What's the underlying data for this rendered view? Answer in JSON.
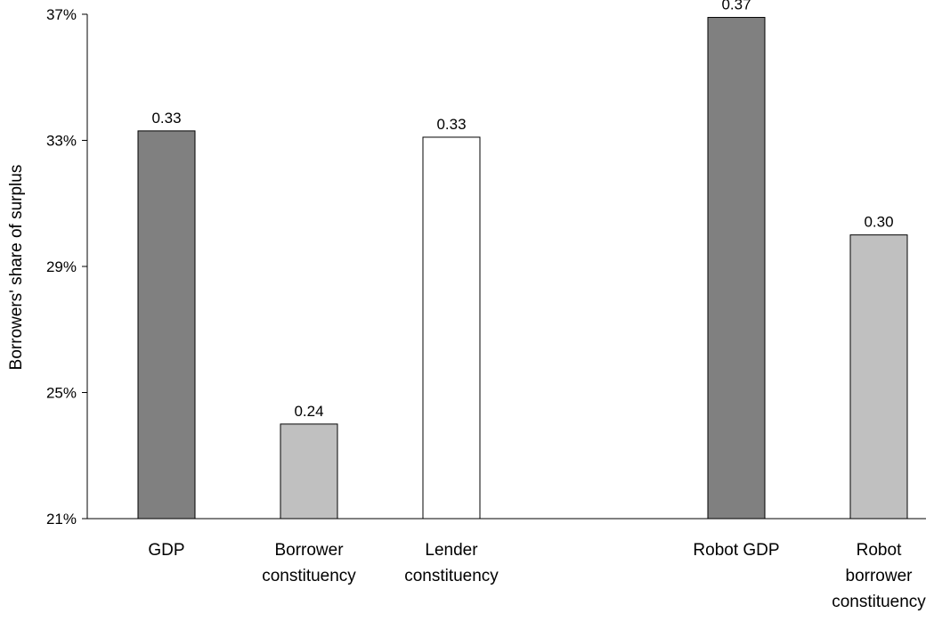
{
  "chart_data": {
    "type": "bar",
    "title": "",
    "ylabel": "Borrowers' share of surplus",
    "xlabel": "",
    "ylim": [
      0.21,
      0.37
    ],
    "yticks": [
      {
        "value": 0.21,
        "label": "21%"
      },
      {
        "value": 0.25,
        "label": "25%"
      },
      {
        "value": 0.29,
        "label": "29%"
      },
      {
        "value": 0.33,
        "label": "33%"
      },
      {
        "value": 0.37,
        "label": "37%"
      }
    ],
    "bars": [
      {
        "category_lines": [
          "GDP"
        ],
        "value": 0.333,
        "label": "0.33",
        "color": "#808080",
        "slot": 0
      },
      {
        "category_lines": [
          "Borrower",
          "constituency"
        ],
        "value": 0.24,
        "label": "0.24",
        "color": "#c0c0c0",
        "slot": 1
      },
      {
        "category_lines": [
          "Lender",
          "constituency"
        ],
        "value": 0.331,
        "label": "0.33",
        "color": "#ffffff",
        "slot": 2
      },
      {
        "category_lines": [
          "Robot GDP"
        ],
        "value": 0.369,
        "label": "0.37",
        "color": "#808080",
        "slot": 4
      },
      {
        "category_lines": [
          "Robot",
          "borrower",
          "constituency"
        ],
        "value": 0.3,
        "label": "0.30",
        "color": "#c0c0c0",
        "slot": 5
      }
    ],
    "grid": false,
    "legend": "none"
  }
}
